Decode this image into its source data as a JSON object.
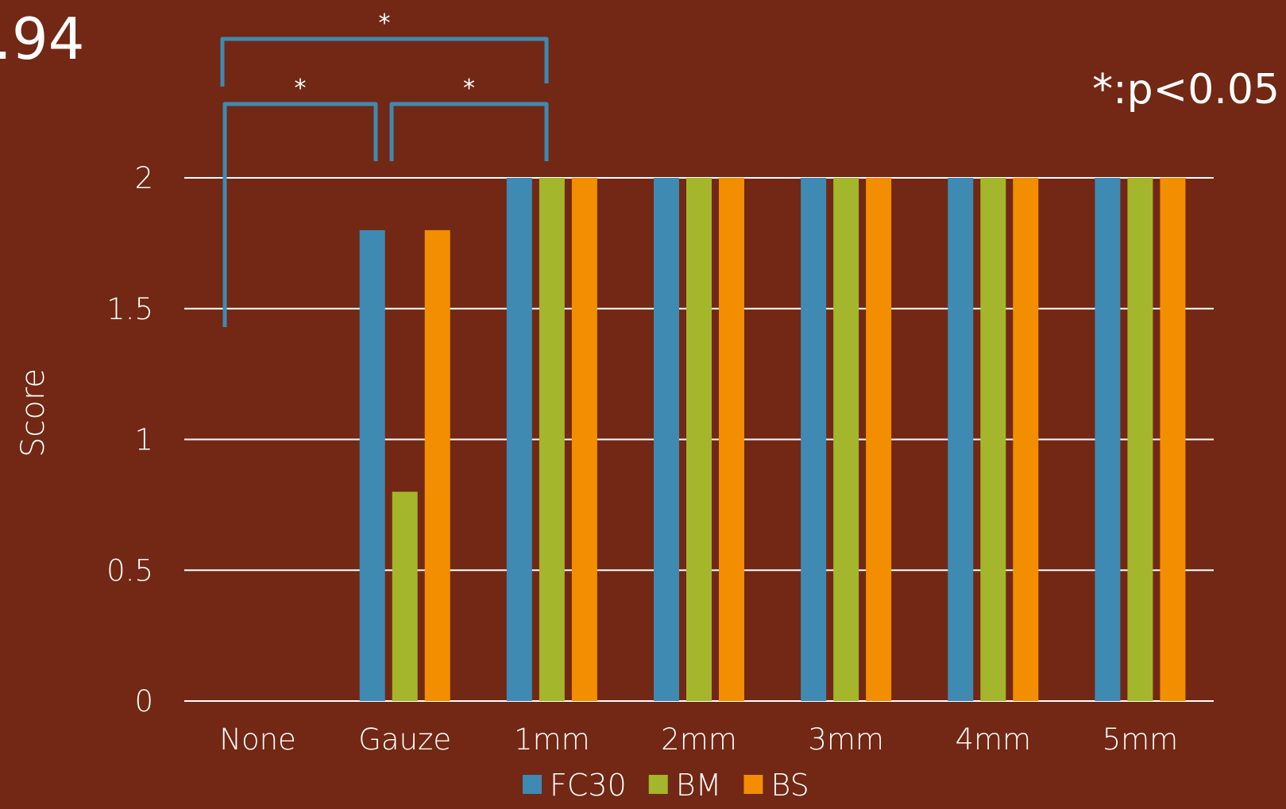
{
  "corner_text": ".94",
  "significance_note": "*:p<0.05",
  "chart_data": {
    "type": "bar",
    "title": "",
    "xlabel": "",
    "ylabel": "Score",
    "ylim": [
      0,
      2
    ],
    "yticks": [
      "0",
      "0.5",
      "1",
      "1.5",
      "2"
    ],
    "grid": true,
    "legend_position": "bottom",
    "categories": [
      "None",
      "Gauze",
      "1mm",
      "2mm",
      "3mm",
      "4mm",
      "5mm"
    ],
    "series": [
      {
        "name": "FC30",
        "color": "#3e8ab3",
        "values": [
          0,
          1.8,
          2,
          2,
          2,
          2,
          2
        ]
      },
      {
        "name": "BM",
        "color": "#a4b62c",
        "values": [
          0,
          0.8,
          2,
          2,
          2,
          2,
          2
        ]
      },
      {
        "name": "BS",
        "color": "#f28e00",
        "values": [
          0,
          1.8,
          2,
          2,
          2,
          2,
          2
        ]
      }
    ],
    "annotations": [
      {
        "label": "*",
        "from": "None",
        "to": "1mm",
        "meaning": "significant"
      },
      {
        "label": "*",
        "from": "None",
        "to": "Gauze",
        "meaning": "significant"
      },
      {
        "label": "*",
        "from": "Gauze",
        "to": "1mm",
        "meaning": "significant"
      }
    ],
    "annotation_color": "#3e8ab3"
  }
}
